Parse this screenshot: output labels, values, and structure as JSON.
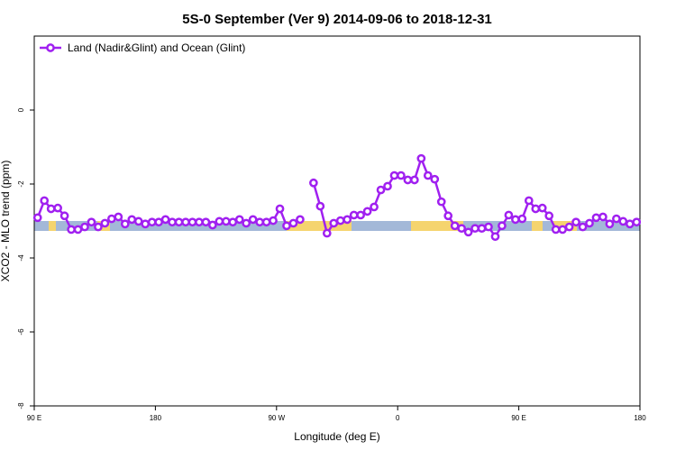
{
  "chart_data": {
    "type": "line",
    "title": "5S-0 September (Ver 9)   2014-09-06 to 2018-12-31",
    "xlabel": "Longitude (deg E)",
    "ylabel": "XCO2 - MLO trend (ppm)",
    "xlim": [
      90,
      540
    ],
    "xticks": [
      {
        "value": 90,
        "label": "90 E"
      },
      {
        "value": 180,
        "label": "180"
      },
      {
        "value": 270,
        "label": "90 W"
      },
      {
        "value": 360,
        "label": "0"
      },
      {
        "value": 450,
        "label": "90 E"
      },
      {
        "value": 540,
        "label": "180"
      }
    ],
    "ylim": [
      -8,
      2
    ],
    "yticks": [
      -8,
      -6,
      -4,
      -2,
      0
    ],
    "legend": "top-left",
    "x": [
      92.5,
      97.5,
      102.5,
      107.5,
      112.5,
      117.5,
      122.5,
      127.5,
      132.5,
      137.5,
      142.5,
      147.5,
      152.5,
      157.5,
      162.5,
      167.5,
      172.5,
      177.5,
      182.5,
      187.5,
      192.5,
      197.5,
      202.5,
      207.5,
      212.5,
      217.5,
      222.5,
      227.5,
      232.5,
      237.5,
      242.5,
      247.5,
      252.5,
      257.5,
      262.5,
      267.5,
      272.5,
      277.5,
      282.5,
      287.5,
      292.5,
      297.5,
      302.5,
      307.5,
      312.5,
      317.5,
      322.5,
      327.5,
      332.5,
      337.5,
      342.5,
      347.5,
      352.5,
      357.5,
      362.5,
      367.5,
      372.5,
      377.5,
      382.5,
      387.5,
      392.5,
      397.5,
      402.5,
      407.5,
      412.5,
      417.5,
      422.5,
      427.5,
      432.5,
      437.5,
      442.5,
      447.5,
      452.5,
      457.5,
      462.5,
      467.5,
      472.5,
      477.5,
      482.5,
      487.5,
      492.5,
      497.5,
      502.5,
      507.5,
      512.5,
      517.5,
      522.5,
      527.5,
      532.5,
      537.5
    ],
    "series": [
      {
        "name": "Land (Nadir&Glint) and Ocean (Glint)",
        "color": "#a020f0",
        "values": [
          -2.91,
          -2.45,
          -2.67,
          -2.65,
          -2.86,
          -3.23,
          -3.23,
          -3.16,
          -3.03,
          -3.16,
          -3.06,
          -2.94,
          -2.89,
          -3.08,
          -2.96,
          -3.01,
          -3.08,
          -3.03,
          -3.03,
          -2.96,
          -3.03,
          -3.03,
          -3.03,
          -3.03,
          -3.03,
          -3.03,
          -3.11,
          -3.01,
          -3.01,
          -3.03,
          -2.96,
          -3.06,
          -2.96,
          -3.03,
          -3.03,
          -2.99,
          -2.67,
          -3.13,
          -3.06,
          -2.96,
          null,
          -1.97,
          -2.6,
          -3.33,
          -3.06,
          -2.99,
          -2.96,
          -2.84,
          -2.84,
          -2.74,
          -2.62,
          -2.16,
          -2.06,
          -1.77,
          -1.77,
          -1.89,
          -1.89,
          -1.31,
          -1.77,
          -1.87,
          -2.48,
          -2.86,
          -3.13,
          -3.2,
          -3.3,
          -3.2,
          -3.2,
          -3.16,
          -3.42,
          -3.13,
          -2.84,
          -2.96,
          -2.94,
          -2.45,
          -2.67,
          -2.65,
          -2.86,
          -3.23,
          -3.23,
          -3.16,
          -3.03,
          -3.16,
          -3.06,
          -2.91,
          -2.89,
          -3.08,
          -2.94,
          -3.01,
          -3.08,
          -3.03
        ]
      }
    ]
  }
}
